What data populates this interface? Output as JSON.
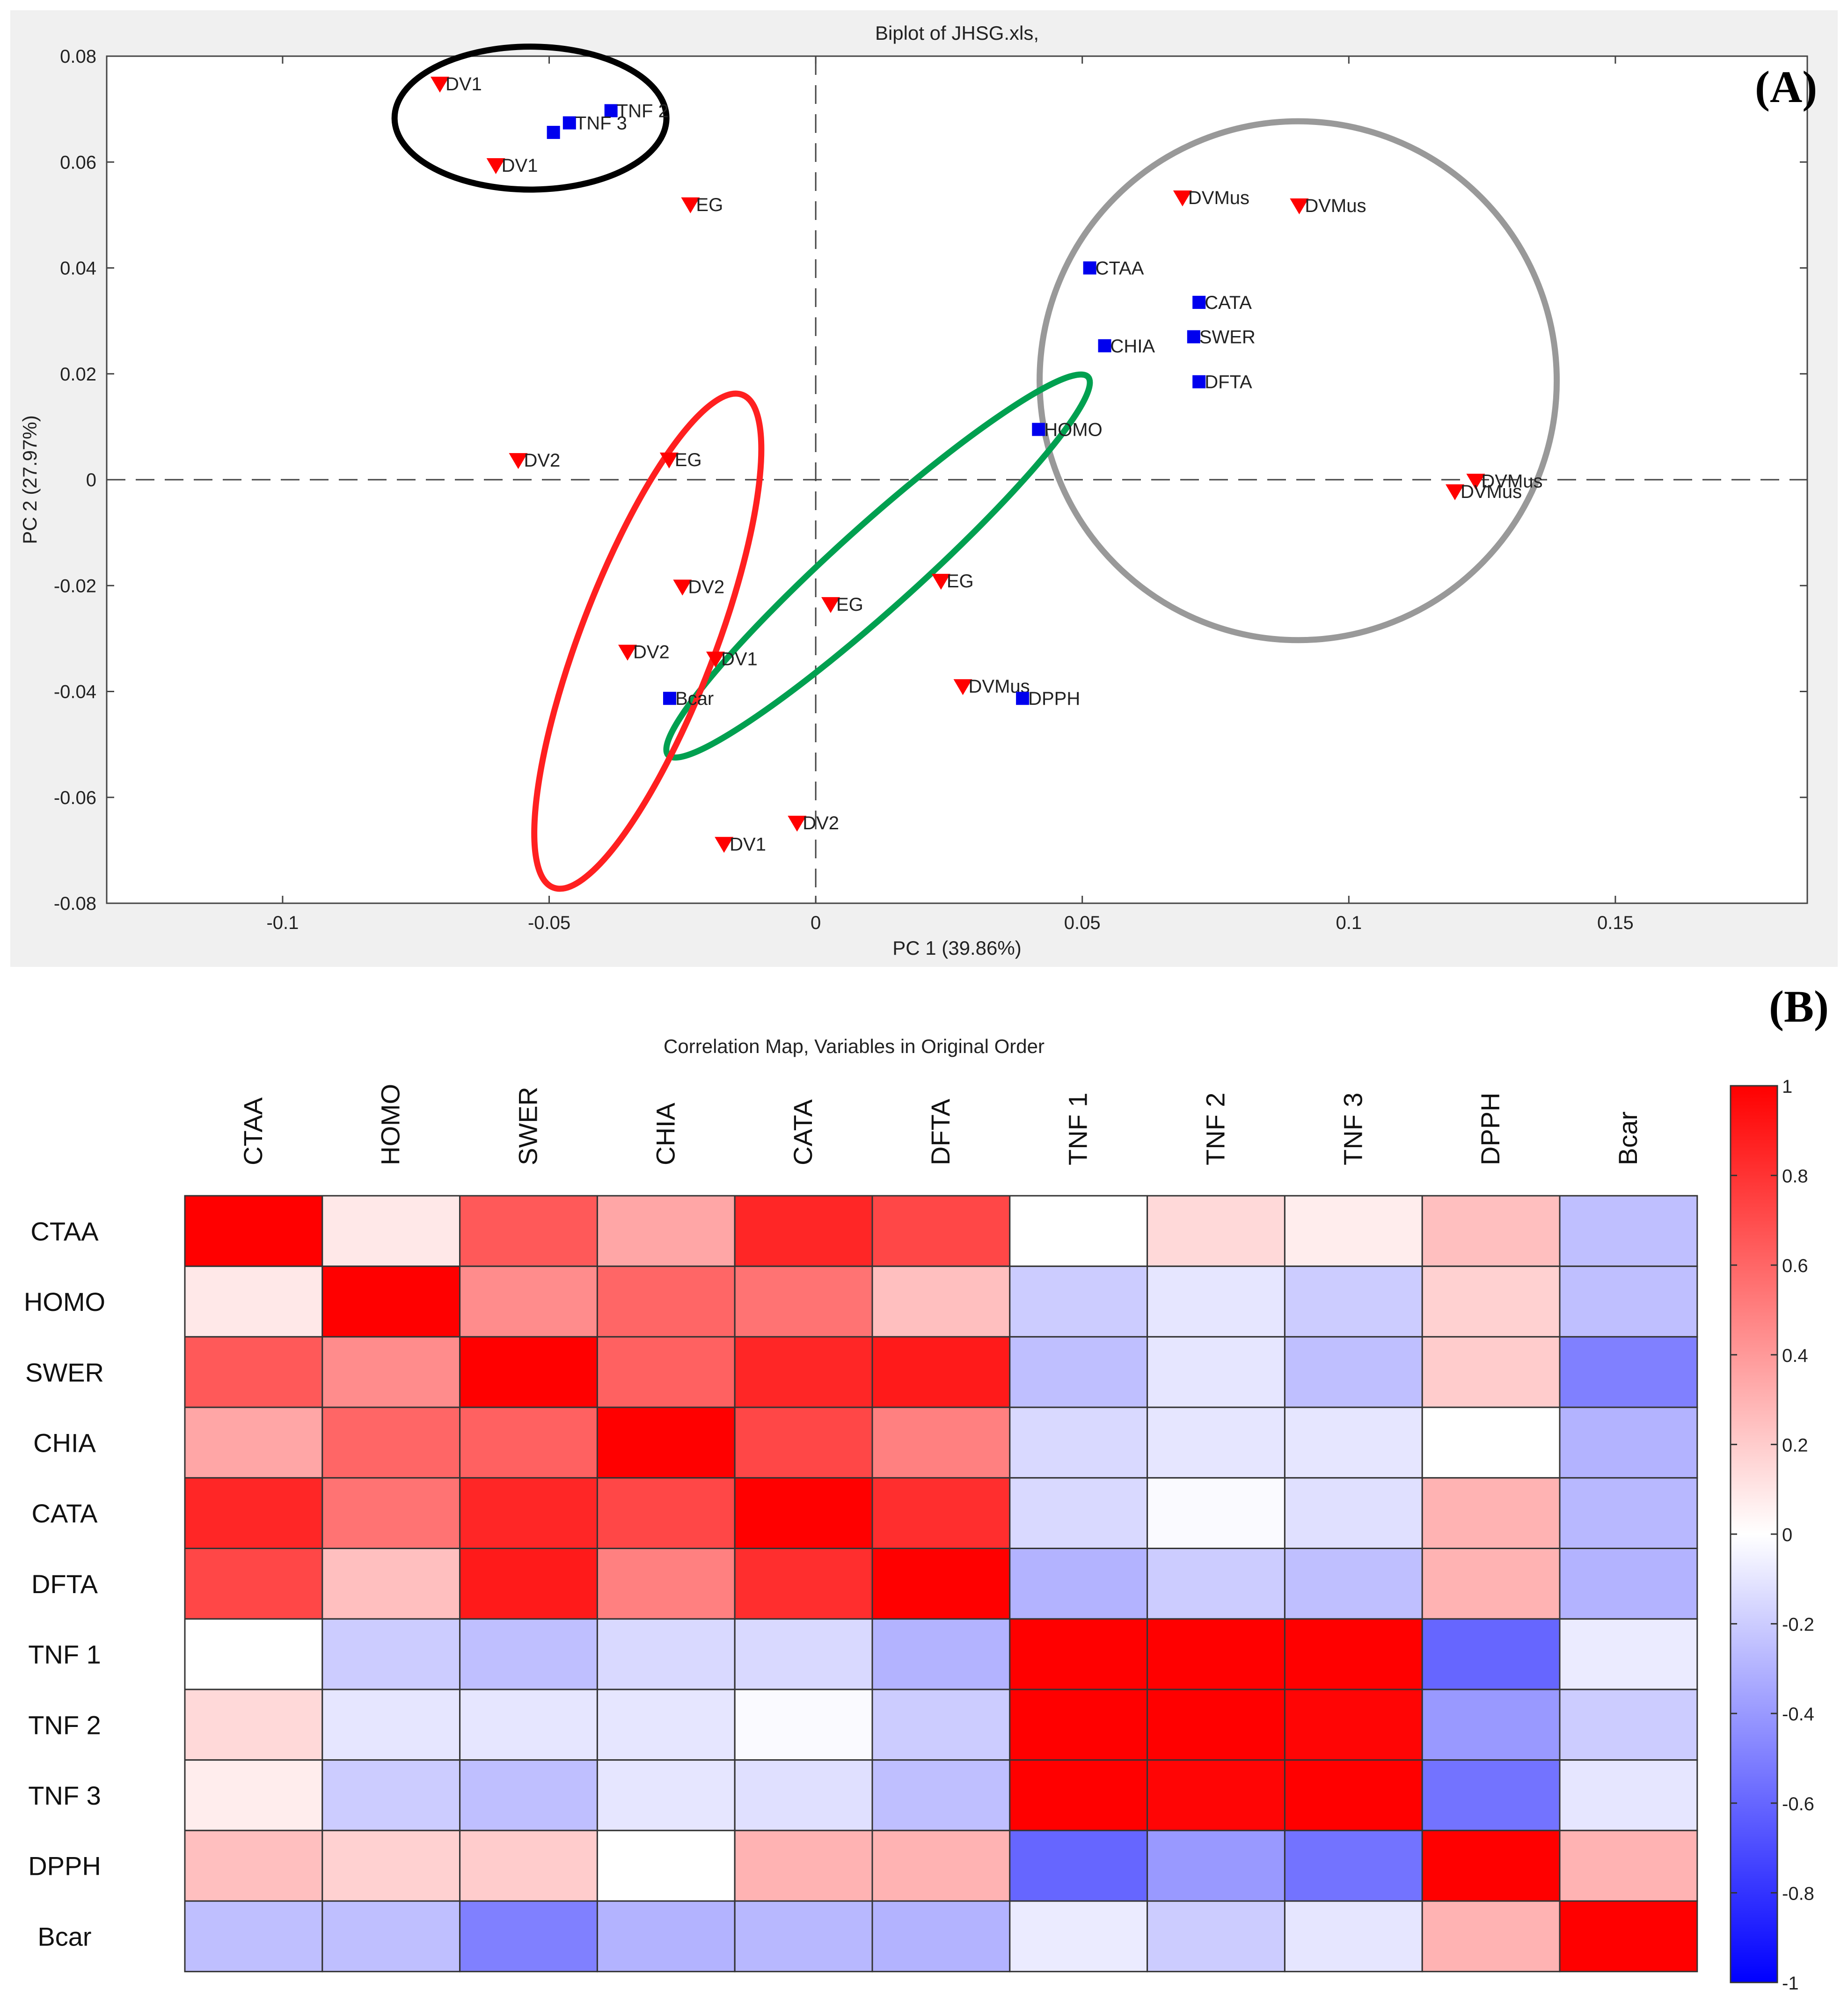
{
  "panel_a_label": "(A)",
  "panel_b_label": "(B)",
  "chart_data": [
    {
      "type": "scatter",
      "title": "Biplot of JHSG.xls,",
      "xlabel": "PC 1 (39.86%)",
      "ylabel": "PC 2 (27.97%)",
      "xlim": [
        -0.133,
        0.186
      ],
      "ylim": [
        -0.08,
        0.08
      ],
      "xticks": [
        -0.1,
        -0.05,
        0,
        0.05,
        0.1,
        0.15
      ],
      "xtick_labels": [
        "-0.1",
        "-0.05",
        "0",
        "0.05",
        "0.1",
        "0.15"
      ],
      "yticks": [
        -0.08,
        -0.06,
        -0.04,
        -0.02,
        0,
        0.02,
        0.04,
        0.06,
        0.08
      ],
      "ytick_labels": [
        "-0.08",
        "-0.06",
        "-0.04",
        "-0.02",
        "0",
        "0.02",
        "0.04",
        "0.06",
        "0.08"
      ],
      "grid": false,
      "reference_lines": "dashed lines at x=0 and y=0",
      "series": [
        {
          "name": "scores",
          "marker": "triangle-down",
          "color": "#ff0000",
          "points": [
            {
              "x": -0.0705,
              "y": 0.0748,
              "label": "DV1"
            },
            {
              "x": -0.06,
              "y": 0.0594,
              "label": "DV1"
            },
            {
              "x": -0.0235,
              "y": 0.052,
              "label": "EG"
            },
            {
              "x": 0.0688,
              "y": 0.0533,
              "label": "DVMus"
            },
            {
              "x": 0.0907,
              "y": 0.0518,
              "label": "DVMus"
            },
            {
              "x": -0.0558,
              "y": 0.0037,
              "label": "DV2"
            },
            {
              "x": -0.0275,
              "y": 0.0038,
              "label": "EG"
            },
            {
              "x": 0.1238,
              "y": -0.0002,
              "label": "DVMus"
            },
            {
              "x": 0.1199,
              "y": -0.0022,
              "label": "DVMus"
            },
            {
              "x": -0.025,
              "y": -0.0202,
              "label": "DV2"
            },
            {
              "x": 0.0235,
              "y": -0.0191,
              "label": "EG"
            },
            {
              "x": 0.0028,
              "y": -0.0235,
              "label": "EG"
            },
            {
              "x": -0.0353,
              "y": -0.0325,
              "label": "DV2"
            },
            {
              "x": -0.0188,
              "y": -0.0338,
              "label": "DV1"
            },
            {
              "x": 0.0276,
              "y": -0.039,
              "label": "DVMus"
            },
            {
              "x": -0.0035,
              "y": -0.0648,
              "label": "DV2"
            },
            {
              "x": -0.0172,
              "y": -0.0688,
              "label": "DV1"
            }
          ]
        },
        {
          "name": "loadings",
          "marker": "square",
          "color": "#0000ee",
          "points": [
            {
              "x": -0.0384,
              "y": 0.0697,
              "label": "TNF 2"
            },
            {
              "x": -0.0462,
              "y": 0.0674,
              "label": "TNF 3"
            },
            {
              "x": -0.0492,
              "y": 0.0656,
              "label": ""
            },
            {
              "x": 0.0514,
              "y": 0.04,
              "label": "CTAA"
            },
            {
              "x": 0.0719,
              "y": 0.0335,
              "label": "CATA"
            },
            {
              "x": 0.0709,
              "y": 0.027,
              "label": "SWER"
            },
            {
              "x": 0.0542,
              "y": 0.0253,
              "label": "CHIA"
            },
            {
              "x": 0.0719,
              "y": 0.0185,
              "label": "DFTA"
            },
            {
              "x": 0.0418,
              "y": 0.0095,
              "label": "HOMO"
            },
            {
              "x": -0.0274,
              "y": -0.0413,
              "label": "Bcar"
            },
            {
              "x": 0.0388,
              "y": -0.0413,
              "label": "DPPH"
            }
          ]
        }
      ],
      "annotations": [
        {
          "shape": "ellipse",
          "color": "#000000",
          "cx": -0.0535,
          "cy": 0.0683,
          "rx": 0.0255,
          "ry": 0.0135,
          "angle": 0
        },
        {
          "shape": "ellipse",
          "color": "#999999",
          "cx": 0.0905,
          "cy": 0.0187,
          "rx": 0.0485,
          "ry": 0.049,
          "angle": 0
        },
        {
          "shape": "ellipse",
          "color": "#00a050",
          "cx": 0.0117,
          "cy": -0.0163,
          "rx": 0.053,
          "ry": 0.0078,
          "angle": -42
        },
        {
          "shape": "ellipse",
          "color": "#ff2020",
          "cx": -0.0315,
          "cy": -0.0305,
          "rx": 0.0495,
          "ry": 0.0127,
          "angle": -69
        }
      ]
    },
    {
      "type": "heatmap",
      "title": "Correlation Map, Variables in Original Order",
      "variables": [
        "CTAA",
        "HOMO",
        "SWER",
        "CHIA",
        "CATA",
        "DFTA",
        "TNF 1",
        "TNF 2",
        "TNF 3",
        "DPPH",
        "Bcar"
      ],
      "matrix": [
        [
          1.0,
          0.09,
          0.65,
          0.35,
          0.85,
          0.72,
          0.0,
          0.15,
          0.07,
          0.25,
          -0.25
        ],
        [
          0.09,
          1.0,
          0.45,
          0.6,
          0.55,
          0.25,
          -0.2,
          -0.1,
          -0.2,
          0.18,
          -0.25
        ],
        [
          0.65,
          0.45,
          1.0,
          0.62,
          0.85,
          0.9,
          -0.25,
          -0.1,
          -0.25,
          0.2,
          -0.5
        ],
        [
          0.35,
          0.6,
          0.62,
          1.0,
          0.72,
          0.5,
          -0.15,
          -0.1,
          -0.1,
          0.0,
          -0.3
        ],
        [
          0.85,
          0.55,
          0.85,
          0.72,
          1.0,
          0.82,
          -0.15,
          -0.02,
          -0.12,
          0.3,
          -0.28
        ],
        [
          0.72,
          0.25,
          0.9,
          0.5,
          0.82,
          1.0,
          -0.3,
          -0.2,
          -0.25,
          0.3,
          -0.3
        ],
        [
          0.0,
          -0.2,
          -0.25,
          -0.15,
          -0.15,
          -0.3,
          1.0,
          1.0,
          1.0,
          -0.6,
          -0.08
        ],
        [
          0.15,
          -0.1,
          -0.1,
          -0.1,
          -0.02,
          -0.2,
          1.0,
          1.0,
          0.98,
          -0.4,
          -0.2
        ],
        [
          0.07,
          -0.2,
          -0.25,
          -0.1,
          -0.12,
          -0.25,
          1.0,
          0.98,
          1.0,
          -0.55,
          -0.1
        ],
        [
          0.25,
          0.18,
          0.2,
          0.0,
          0.3,
          0.3,
          -0.6,
          -0.4,
          -0.55,
          1.0,
          0.3
        ],
        [
          -0.25,
          -0.25,
          -0.5,
          -0.3,
          -0.28,
          -0.3,
          -0.08,
          -0.2,
          -0.1,
          0.3,
          1.0
        ]
      ],
      "colorbar": {
        "min": -1,
        "max": 1,
        "ticks": [
          -1,
          -0.8,
          -0.6,
          -0.4,
          -0.2,
          0,
          0.2,
          0.4,
          0.6,
          0.8,
          1
        ],
        "tick_labels": [
          "-1",
          "-0.8",
          "-0.6",
          "-0.4",
          "-0.2",
          "0",
          "0.2",
          "0.4",
          "0.6",
          "0.8",
          "1"
        ],
        "low_color": "#0000ff",
        "mid_color": "#ffffff",
        "high_color": "#ff0000"
      }
    }
  ]
}
